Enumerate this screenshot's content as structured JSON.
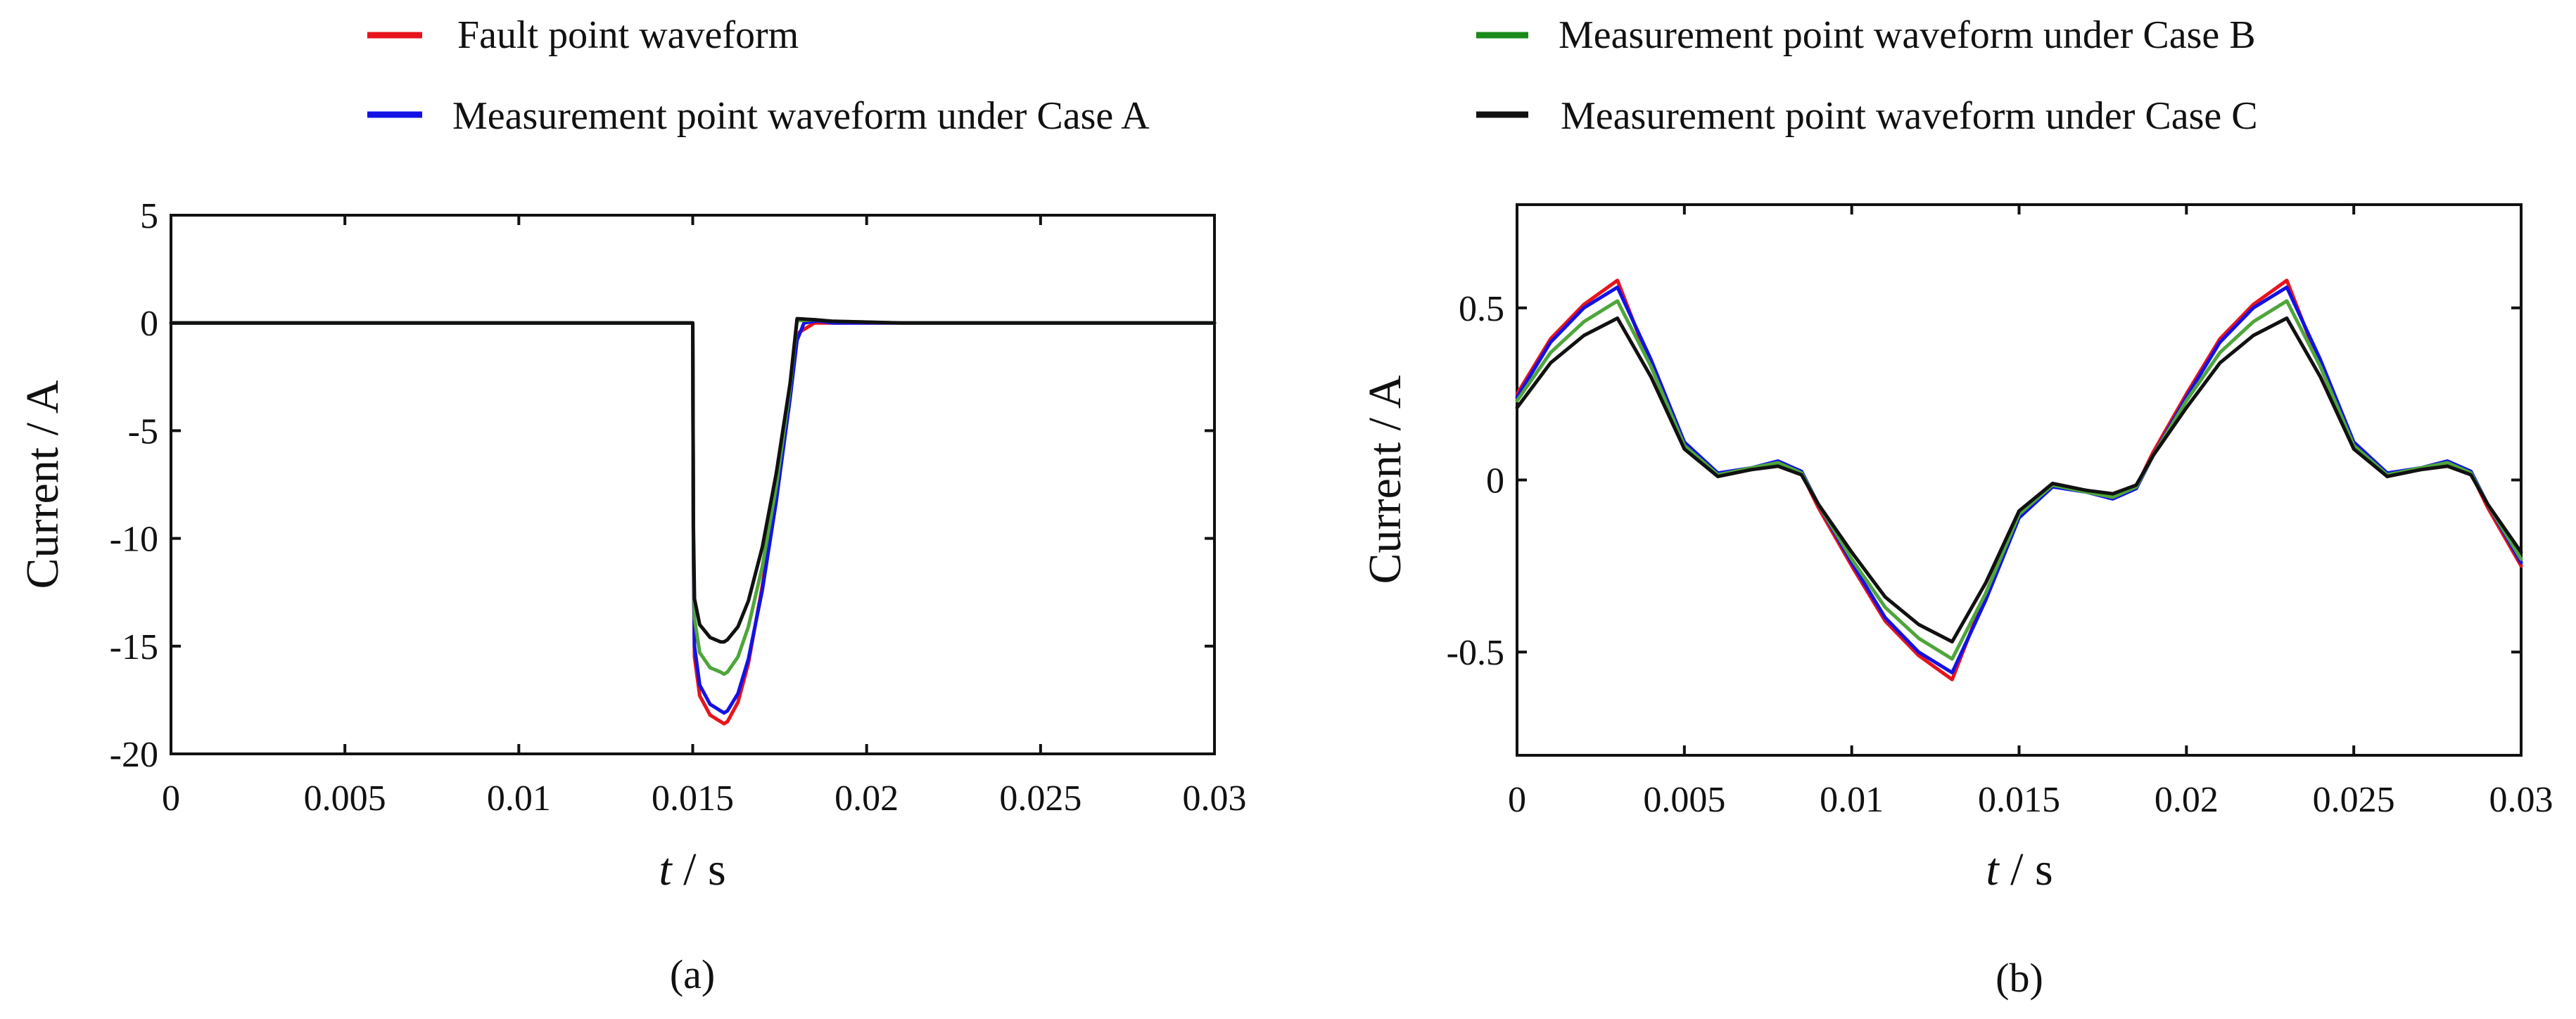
{
  "legend": [
    {
      "label": "Fault point waveform",
      "color": "#e8141c"
    },
    {
      "label": "Measurement point waveform under Case A",
      "color": "#1212e6"
    },
    {
      "label": "Measurement point waveform under Case B",
      "color": "#1a8a1a"
    },
    {
      "label": "Measurement point waveform under Case C",
      "color": "#111111"
    }
  ],
  "chart_data": [
    {
      "type": "line",
      "caption": "(a)",
      "xlabel_italic": "t",
      "xlabel_unit": " / s",
      "ylabel": "Current / A",
      "xlim": [
        0,
        0.03
      ],
      "ylim": [
        -20,
        5
      ],
      "xticks": [
        0,
        0.005,
        0.01,
        0.015,
        0.02,
        0.025,
        0.03
      ],
      "xtick_labels": [
        "0",
        "0.005",
        "0.01",
        "0.015",
        "0.02",
        "0.025",
        "0.03"
      ],
      "yticks": [
        5,
        0,
        -5,
        -10,
        -15,
        -20
      ],
      "ytick_labels": [
        "5",
        "0",
        "-5",
        "-10",
        "-15",
        "-20"
      ],
      "series": [
        {
          "name": "Fault point waveform",
          "color": "#e8141c",
          "x": [
            0,
            0.015,
            0.01502,
            0.01505,
            0.0152,
            0.0155,
            0.0158,
            0.0159,
            0.016,
            0.0163,
            0.0166,
            0.017,
            0.0174,
            0.0178,
            0.018,
            0.0185,
            0.019,
            0.03
          ],
          "y": [
            0,
            0,
            -11,
            -15.5,
            -17.3,
            -18.2,
            -18.5,
            -18.6,
            -18.5,
            -17.6,
            -15.8,
            -12.2,
            -8,
            -3,
            -0.5,
            0,
            0,
            0
          ]
        },
        {
          "name": "Measurement point waveform under Case A",
          "color": "#1212e6",
          "x": [
            0,
            0.015,
            0.01502,
            0.01505,
            0.0152,
            0.0155,
            0.0158,
            0.0159,
            0.016,
            0.0163,
            0.0166,
            0.017,
            0.0174,
            0.0178,
            0.018,
            0.0182,
            0.0186,
            0.019,
            0.03
          ],
          "y": [
            0,
            0,
            -10.5,
            -15,
            -16.8,
            -17.7,
            -18,
            -18.1,
            -18,
            -17.2,
            -15.6,
            -12.4,
            -8.3,
            -3.5,
            -0.8,
            0,
            0.1,
            0,
            0
          ]
        },
        {
          "name": "Measurement point waveform under Case B",
          "color": "#4ea63a",
          "x": [
            0,
            0.015,
            0.01502,
            0.01505,
            0.0152,
            0.0155,
            0.0158,
            0.0159,
            0.016,
            0.0163,
            0.0166,
            0.017,
            0.0174,
            0.0178,
            0.018,
            0.0185,
            0.019,
            0.021,
            0.03
          ],
          "y": [
            0,
            0,
            -10,
            -13.7,
            -15.3,
            -16,
            -16.2,
            -16.3,
            -16.2,
            -15.5,
            -14.1,
            -11.3,
            -7.6,
            -3,
            0.1,
            0.15,
            0.08,
            0,
            0
          ]
        },
        {
          "name": "Measurement point waveform under Case C",
          "color": "#111111",
          "x": [
            0,
            0.015,
            0.01502,
            0.01505,
            0.0152,
            0.0155,
            0.0158,
            0.0159,
            0.016,
            0.0163,
            0.0166,
            0.017,
            0.0174,
            0.0178,
            0.018,
            0.0185,
            0.019,
            0.021,
            0.03
          ],
          "y": [
            0,
            0,
            -9.5,
            -12.8,
            -14,
            -14.6,
            -14.8,
            -14.8,
            -14.7,
            -14.1,
            -12.9,
            -10.4,
            -7,
            -2.8,
            0.2,
            0.15,
            0.08,
            0,
            0
          ]
        }
      ]
    },
    {
      "type": "line",
      "caption": "(b)",
      "xlabel_italic": "t",
      "xlabel_unit": " / s",
      "ylabel": "Current / A",
      "xlim": [
        0,
        0.03
      ],
      "ylim": [
        -0.8,
        0.8
      ],
      "xticks": [
        0,
        0.005,
        0.01,
        0.015,
        0.02,
        0.025,
        0.03
      ],
      "xtick_labels": [
        "0",
        "0.005",
        "0.01",
        "0.015",
        "0.02",
        "0.025",
        "0.03"
      ],
      "yticks": [
        0.5,
        0,
        -0.5
      ],
      "ytick_labels": [
        "0.5",
        "0",
        "-0.5"
      ],
      "series": [
        {
          "name": "Fault point waveform",
          "color": "#e8141c",
          "x": [
            0,
            0.001,
            0.002,
            0.003,
            0.004,
            0.005,
            0.006,
            0.007,
            0.0078,
            0.0085,
            0.009,
            0.01,
            0.011,
            0.012,
            0.013,
            0.014,
            0.015,
            0.016,
            0.017,
            0.0178,
            0.0185,
            0.019,
            0.02,
            0.021,
            0.022,
            0.023,
            0.024,
            0.025,
            0.026,
            0.027,
            0.0278,
            0.0285,
            0.029,
            0.03
          ],
          "y": [
            0.25,
            0.41,
            0.51,
            0.58,
            0.33,
            0.1,
            0.015,
            0.03,
            0.05,
            0.02,
            -0.08,
            -0.25,
            -0.41,
            -0.51,
            -0.58,
            -0.33,
            -0.1,
            -0.015,
            -0.03,
            -0.05,
            -0.02,
            0.08,
            0.25,
            0.41,
            0.51,
            0.58,
            0.33,
            0.1,
            0.015,
            0.03,
            0.05,
            0.02,
            -0.08,
            -0.25
          ]
        },
        {
          "name": "Measurement point waveform under Case A",
          "color": "#1212e6",
          "x": [
            0,
            0.001,
            0.002,
            0.003,
            0.004,
            0.005,
            0.006,
            0.007,
            0.0078,
            0.0085,
            0.009,
            0.01,
            0.011,
            0.012,
            0.013,
            0.014,
            0.015,
            0.016,
            0.017,
            0.0178,
            0.0185,
            0.019,
            0.02,
            0.021,
            0.022,
            0.023,
            0.024,
            0.025,
            0.026,
            0.027,
            0.0278,
            0.0285,
            0.029,
            0.03
          ],
          "y": [
            0.24,
            0.4,
            0.5,
            0.56,
            0.35,
            0.11,
            0.02,
            0.035,
            0.055,
            0.025,
            -0.07,
            -0.24,
            -0.4,
            -0.5,
            -0.56,
            -0.35,
            -0.11,
            -0.02,
            -0.035,
            -0.055,
            -0.025,
            0.07,
            0.24,
            0.4,
            0.5,
            0.56,
            0.35,
            0.11,
            0.02,
            0.035,
            0.055,
            0.025,
            -0.07,
            -0.24
          ]
        },
        {
          "name": "Measurement point waveform under Case B",
          "color": "#4ea63a",
          "x": [
            0,
            0.001,
            0.002,
            0.003,
            0.004,
            0.005,
            0.006,
            0.007,
            0.0078,
            0.0085,
            0.009,
            0.01,
            0.011,
            0.012,
            0.013,
            0.014,
            0.015,
            0.016,
            0.017,
            0.0178,
            0.0185,
            0.019,
            0.02,
            0.021,
            0.022,
            0.023,
            0.024,
            0.025,
            0.026,
            0.027,
            0.0278,
            0.0285,
            0.029,
            0.03
          ],
          "y": [
            0.23,
            0.37,
            0.46,
            0.52,
            0.33,
            0.1,
            0.015,
            0.035,
            0.05,
            0.02,
            -0.07,
            -0.23,
            -0.37,
            -0.46,
            -0.52,
            -0.33,
            -0.1,
            -0.015,
            -0.035,
            -0.05,
            -0.02,
            0.07,
            0.23,
            0.37,
            0.46,
            0.52,
            0.33,
            0.1,
            0.015,
            0.035,
            0.05,
            0.02,
            -0.07,
            -0.23
          ]
        },
        {
          "name": "Measurement point waveform under Case C",
          "color": "#111111",
          "x": [
            0,
            0.001,
            0.002,
            0.003,
            0.004,
            0.005,
            0.006,
            0.007,
            0.0078,
            0.0085,
            0.009,
            0.01,
            0.011,
            0.012,
            0.013,
            0.014,
            0.015,
            0.016,
            0.017,
            0.0178,
            0.0185,
            0.019,
            0.02,
            0.021,
            0.022,
            0.023,
            0.024,
            0.025,
            0.026,
            0.027,
            0.0278,
            0.0285,
            0.029,
            0.03
          ],
          "y": [
            0.21,
            0.34,
            0.42,
            0.47,
            0.3,
            0.09,
            0.01,
            0.03,
            0.04,
            0.015,
            -0.07,
            -0.21,
            -0.34,
            -0.42,
            -0.47,
            -0.3,
            -0.09,
            -0.01,
            -0.03,
            -0.04,
            -0.015,
            0.07,
            0.21,
            0.34,
            0.42,
            0.47,
            0.3,
            0.09,
            0.01,
            0.03,
            0.04,
            0.015,
            -0.07,
            -0.21
          ]
        }
      ]
    }
  ]
}
